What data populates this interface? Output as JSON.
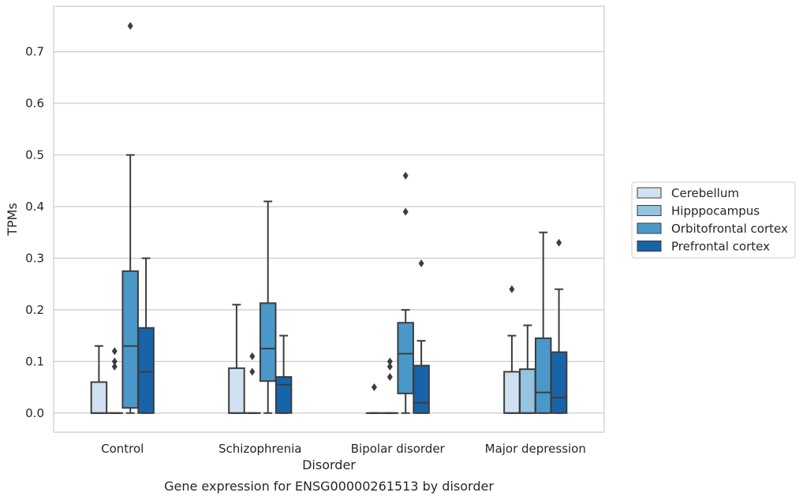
{
  "caption": "Gene expression for ENSG00000261513 by disorder",
  "chart_data": {
    "type": "box",
    "xlabel": "Disorder",
    "ylabel": "TPMs",
    "ylim": [
      -0.037,
      0.788
    ],
    "yticks": [
      0.0,
      0.1,
      0.2,
      0.3,
      0.4,
      0.5,
      0.6,
      0.7
    ],
    "ytick_labels": [
      "0.0",
      "0.1",
      "0.2",
      "0.3",
      "0.4",
      "0.5",
      "0.6",
      "0.7"
    ],
    "grid": "horizontal",
    "legend_position": "right",
    "categories": [
      "Control",
      "Schizophrenia",
      "Bipolar disorder",
      "Major depression"
    ],
    "series": [
      {
        "name": "Cerebellum",
        "color": "#d0e1f2",
        "boxes": [
          {
            "min": 0.0,
            "q1": 0.0,
            "median": 0.0,
            "q3": 0.06,
            "max": 0.13,
            "outliers": []
          },
          {
            "min": 0.0,
            "q1": 0.0,
            "median": 0.0,
            "q3": 0.087,
            "max": 0.21,
            "outliers": []
          },
          {
            "min": 0.0,
            "q1": 0.0,
            "median": 0.0,
            "q3": 0.0,
            "max": 0.0,
            "outliers": [
              0.05
            ]
          },
          {
            "min": 0.0,
            "q1": 0.0,
            "median": 0.0,
            "q3": 0.08,
            "max": 0.15,
            "outliers": [
              0.24
            ]
          }
        ]
      },
      {
        "name": "Hipppocampus",
        "color": "#94c4df",
        "boxes": [
          {
            "min": 0.0,
            "q1": 0.0,
            "median": 0.0,
            "q3": 0.0,
            "max": 0.0,
            "outliers": [
              0.09,
              0.1,
              0.12
            ]
          },
          {
            "min": 0.0,
            "q1": 0.0,
            "median": 0.0,
            "q3": 0.0,
            "max": 0.0,
            "outliers": [
              0.08,
              0.11
            ]
          },
          {
            "min": 0.0,
            "q1": 0.0,
            "median": 0.0,
            "q3": 0.0,
            "max": 0.0,
            "outliers": [
              0.07,
              0.09,
              0.1
            ]
          },
          {
            "min": 0.0,
            "q1": 0.0,
            "median": 0.0,
            "q3": 0.085,
            "max": 0.17,
            "outliers": []
          }
        ]
      },
      {
        "name": "Orbitofrontal cortex",
        "color": "#4a98c9",
        "boxes": [
          {
            "min": 0.0,
            "q1": 0.01,
            "median": 0.13,
            "q3": 0.275,
            "max": 0.5,
            "outliers": [
              0.75
            ]
          },
          {
            "min": 0.0,
            "q1": 0.062,
            "median": 0.125,
            "q3": 0.213,
            "max": 0.41,
            "outliers": []
          },
          {
            "min": 0.0,
            "q1": 0.038,
            "median": 0.115,
            "q3": 0.175,
            "max": 0.2,
            "outliers": [
              0.39,
              0.46
            ]
          },
          {
            "min": 0.0,
            "q1": 0.0,
            "median": 0.04,
            "q3": 0.145,
            "max": 0.35,
            "outliers": []
          }
        ]
      },
      {
        "name": "Prefrontal cortex",
        "color": "#1764ab",
        "boxes": [
          {
            "min": 0.0,
            "q1": 0.0,
            "median": 0.08,
            "q3": 0.165,
            "max": 0.3,
            "outliers": []
          },
          {
            "min": 0.0,
            "q1": 0.0,
            "median": 0.055,
            "q3": 0.07,
            "max": 0.15,
            "outliers": []
          },
          {
            "min": 0.0,
            "q1": 0.0,
            "median": 0.02,
            "q3": 0.092,
            "max": 0.14,
            "outliers": [
              0.29
            ]
          },
          {
            "min": 0.0,
            "q1": 0.0,
            "median": 0.03,
            "q3": 0.118,
            "max": 0.24,
            "outliers": [
              0.33
            ]
          }
        ]
      }
    ]
  }
}
